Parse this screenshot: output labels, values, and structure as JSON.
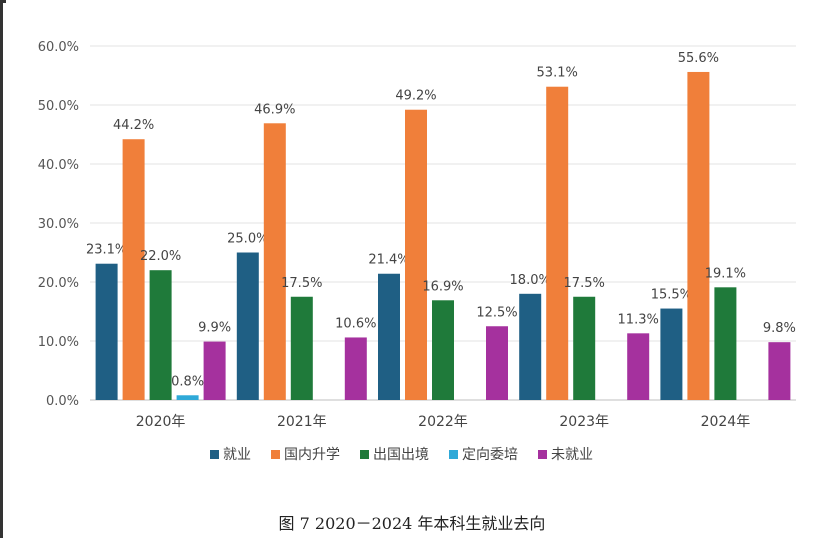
{
  "chart_data": {
    "type": "bar",
    "categories": [
      "2020年",
      "2021年",
      "2022年",
      "2023年",
      "2024年"
    ],
    "series": [
      {
        "name": "就业",
        "color": "#1f5f84",
        "values": [
          23.1,
          25.0,
          21.4,
          18.0,
          15.5
        ],
        "labels": [
          "23.1%",
          "25.0%",
          "21.4%",
          "18.0%",
          "15.5%"
        ]
      },
      {
        "name": "国内升学",
        "color": "#f07f3a",
        "values": [
          44.2,
          46.9,
          49.2,
          53.1,
          55.6
        ],
        "labels": [
          "44.2%",
          "46.9%",
          "49.2%",
          "53.1%",
          "55.6%"
        ]
      },
      {
        "name": "出国出境",
        "color": "#1f7a3a",
        "values": [
          22.0,
          17.5,
          16.9,
          17.5,
          19.1
        ],
        "labels": [
          "22.0%",
          "17.5%",
          "16.9%",
          "17.5%",
          "19.1%"
        ]
      },
      {
        "name": "定向委培",
        "color": "#2fa9d8",
        "values": [
          0.8,
          null,
          null,
          null,
          null
        ],
        "labels": [
          "0.8%",
          "",
          "",
          "",
          ""
        ]
      },
      {
        "name": "未就业",
        "color": "#a5319e",
        "values": [
          9.9,
          10.6,
          12.5,
          11.3,
          9.8
        ],
        "labels": [
          "9.9%",
          "10.6%",
          "12.5%",
          "11.3%",
          "9.8%"
        ]
      }
    ],
    "ylim": [
      0,
      60
    ],
    "yticks": [
      "0.0%",
      "10.0%",
      "20.0%",
      "30.0%",
      "40.0%",
      "50.0%",
      "60.0%"
    ],
    "grid": true,
    "legend_position": "bottom"
  },
  "caption": "图 7 2020－2024 年本科生就业去向"
}
